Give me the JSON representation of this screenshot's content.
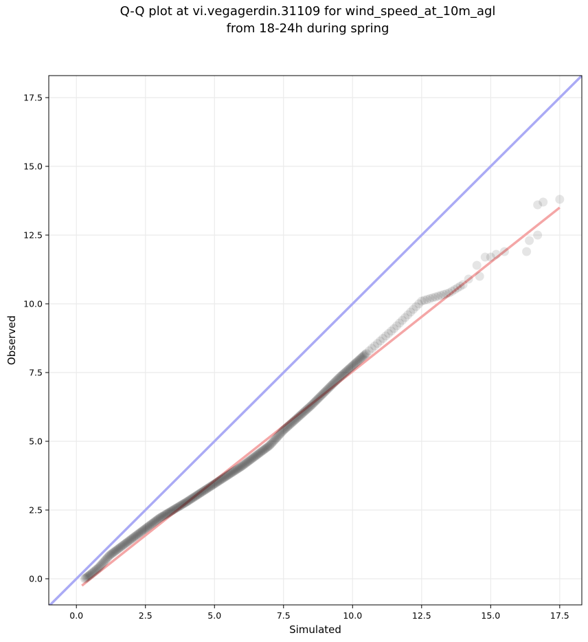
{
  "chart_data": {
    "type": "scatter",
    "title_line1": "Q-Q plot at vi.vegagerdin.31109 for wind_speed_at_10m_agl",
    "title_line2": "from 18-24h during spring",
    "xlabel": "Simulated",
    "ylabel": "Observed",
    "xlim": [
      -1.0,
      18.3
    ],
    "ylim": [
      -0.95,
      18.3
    ],
    "xticks": [
      0.0,
      2.5,
      5.0,
      7.5,
      10.0,
      12.5,
      15.0,
      17.5
    ],
    "xtick_labels": [
      "0.0",
      "2.5",
      "5.0",
      "7.5",
      "10.0",
      "12.5",
      "15.0",
      "17.5"
    ],
    "yticks": [
      0.0,
      2.5,
      5.0,
      7.5,
      10.0,
      12.5,
      15.0,
      17.5
    ],
    "ytick_labels": [
      "0.0",
      "2.5",
      "5.0",
      "7.5",
      "10.0",
      "12.5",
      "15.0",
      "17.5"
    ],
    "grid": true,
    "identity_line": {
      "x": [
        -1.0,
        18.3
      ],
      "y": [
        -1.0,
        18.3
      ],
      "color": "#aaaaf5"
    },
    "fit_line": {
      "x": [
        0.2,
        17.5
      ],
      "y": [
        -0.25,
        13.5
      ],
      "color": "#f4a6a6"
    },
    "colors": {
      "points": "#000000",
      "identity": "#aaaaf5",
      "fit": "#f4a6a6",
      "grid": "#ebebeb"
    },
    "quantile_knots": [
      [
        0.3,
        0.0
      ],
      [
        0.5,
        0.15
      ],
      [
        0.8,
        0.4
      ],
      [
        1.2,
        0.85
      ],
      [
        2.0,
        1.45
      ],
      [
        3.0,
        2.2
      ],
      [
        4.0,
        2.8
      ],
      [
        5.0,
        3.45
      ],
      [
        6.0,
        4.1
      ],
      [
        7.0,
        4.85
      ],
      [
        7.5,
        5.4
      ],
      [
        8.5,
        6.3
      ],
      [
        9.5,
        7.3
      ],
      [
        10.5,
        8.2
      ],
      [
        11.5,
        9.1
      ],
      [
        12.0,
        9.6
      ],
      [
        12.5,
        10.1
      ],
      [
        13.5,
        10.4
      ],
      [
        14.0,
        10.7
      ]
    ],
    "tail_points": [
      [
        14.2,
        10.9
      ],
      [
        14.6,
        11.0
      ],
      [
        14.5,
        11.4
      ],
      [
        14.8,
        11.7
      ],
      [
        15.0,
        11.7
      ],
      [
        15.2,
        11.8
      ],
      [
        15.5,
        11.9
      ],
      [
        16.3,
        11.9
      ],
      [
        16.4,
        12.3
      ],
      [
        16.7,
        12.5
      ],
      [
        16.7,
        13.6
      ],
      [
        16.9,
        13.7
      ],
      [
        17.5,
        13.8
      ]
    ]
  }
}
